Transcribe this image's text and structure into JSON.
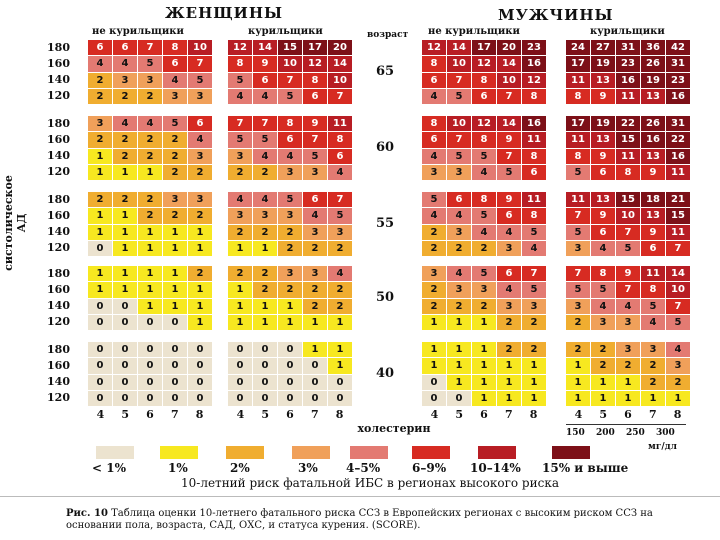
{
  "titles": {
    "women": "ЖЕНЩИНЫ",
    "men": "МУЖЧИНЫ"
  },
  "subheads": {
    "nonsmoker": "не курильщики",
    "smoker": "курильщики",
    "age": "возраст"
  },
  "ylabel": "систолическое АД",
  "sbp_rows": [
    "180",
    "160",
    "140",
    "120"
  ],
  "chol_ticks": [
    "4",
    "5",
    "6",
    "7",
    "8"
  ],
  "chol_label": "холестерин",
  "mgdl_ticks": [
    "150",
    "200",
    "250",
    "300"
  ],
  "mgdl_unit": "мг/дл",
  "ages": [
    "65",
    "60",
    "55",
    "50",
    "40"
  ],
  "chart_data": {
    "type": "heatmap",
    "x_label": "холестерин",
    "y_label": "систолическое АД",
    "x": [
      4,
      5,
      6,
      7,
      8
    ],
    "y": [
      180,
      160,
      140,
      120
    ],
    "panels": [
      {
        "age": "65",
        "women_nonsmoker": [
          [
            6,
            6,
            7,
            8,
            10
          ],
          [
            4,
            4,
            5,
            6,
            7
          ],
          [
            2,
            3,
            3,
            4,
            5
          ],
          [
            2,
            2,
            2,
            3,
            3
          ]
        ],
        "women_smoker": [
          [
            12,
            14,
            15,
            17,
            20
          ],
          [
            8,
            9,
            10,
            12,
            14
          ],
          [
            5,
            6,
            7,
            8,
            10
          ],
          [
            4,
            4,
            5,
            6,
            7
          ]
        ],
        "men_nonsmoker": [
          [
            12,
            14,
            17,
            20,
            23
          ],
          [
            8,
            10,
            12,
            14,
            16
          ],
          [
            6,
            7,
            8,
            10,
            12
          ],
          [
            4,
            5,
            6,
            7,
            8
          ]
        ],
        "men_smoker": [
          [
            24,
            27,
            31,
            36,
            42
          ],
          [
            17,
            19,
            23,
            26,
            31
          ],
          [
            11,
            13,
            16,
            19,
            23
          ],
          [
            8,
            9,
            11,
            13,
            16
          ]
        ]
      },
      {
        "age": "60",
        "women_nonsmoker": [
          [
            3,
            4,
            4,
            5,
            6
          ],
          [
            2,
            2,
            2,
            2,
            4
          ],
          [
            1,
            2,
            2,
            2,
            3
          ],
          [
            1,
            1,
            1,
            2,
            2
          ]
        ],
        "women_smoker": [
          [
            7,
            7,
            8,
            9,
            11
          ],
          [
            5,
            5,
            6,
            7,
            8
          ],
          [
            3,
            4,
            4,
            5,
            6
          ],
          [
            2,
            2,
            3,
            3,
            4
          ]
        ],
        "men_nonsmoker": [
          [
            8,
            10,
            12,
            14,
            16
          ],
          [
            6,
            7,
            8,
            9,
            11
          ],
          [
            4,
            5,
            5,
            7,
            8
          ],
          [
            3,
            3,
            4,
            5,
            6
          ]
        ],
        "men_smoker": [
          [
            17,
            19,
            22,
            26,
            31
          ],
          [
            11,
            13,
            15,
            16,
            22
          ],
          [
            8,
            9,
            11,
            13,
            16
          ],
          [
            5,
            6,
            8,
            9,
            11
          ]
        ]
      },
      {
        "age": "55",
        "women_nonsmoker": [
          [
            2,
            2,
            2,
            3,
            3
          ],
          [
            1,
            1,
            2,
            2,
            2
          ],
          [
            1,
            1,
            1,
            1,
            1
          ],
          [
            0,
            1,
            1,
            1,
            1
          ]
        ],
        "women_smoker": [
          [
            4,
            4,
            5,
            6,
            7
          ],
          [
            3,
            3,
            3,
            4,
            5
          ],
          [
            2,
            2,
            2,
            3,
            3
          ],
          [
            1,
            1,
            2,
            2,
            2
          ]
        ],
        "men_nonsmoker": [
          [
            5,
            6,
            8,
            9,
            11
          ],
          [
            4,
            4,
            5,
            6,
            8
          ],
          [
            2,
            3,
            4,
            4,
            5
          ],
          [
            2,
            2,
            2,
            3,
            4
          ]
        ],
        "men_smoker": [
          [
            11,
            13,
            15,
            18,
            21
          ],
          [
            7,
            9,
            10,
            13,
            15
          ],
          [
            5,
            6,
            7,
            9,
            11
          ],
          [
            3,
            4,
            5,
            6,
            7
          ]
        ]
      },
      {
        "age": "50",
        "women_nonsmoker": [
          [
            1,
            1,
            1,
            1,
            2
          ],
          [
            1,
            1,
            1,
            1,
            1
          ],
          [
            0,
            0,
            1,
            1,
            1
          ],
          [
            0,
            0,
            0,
            0,
            1
          ]
        ],
        "women_smoker": [
          [
            2,
            2,
            3,
            3,
            4
          ],
          [
            1,
            2,
            2,
            2,
            2
          ],
          [
            1,
            1,
            1,
            2,
            2
          ],
          [
            1,
            1,
            1,
            1,
            1
          ]
        ],
        "men_nonsmoker": [
          [
            3,
            4,
            5,
            6,
            7
          ],
          [
            2,
            3,
            3,
            4,
            5
          ],
          [
            2,
            2,
            2,
            3,
            3
          ],
          [
            1,
            1,
            1,
            2,
            2
          ]
        ],
        "men_smoker": [
          [
            7,
            8,
            9,
            11,
            14
          ],
          [
            5,
            5,
            7,
            8,
            10
          ],
          [
            3,
            4,
            4,
            5,
            7
          ],
          [
            2,
            3,
            3,
            4,
            5
          ]
        ]
      },
      {
        "age": "40",
        "women_nonsmoker": [
          [
            0,
            0,
            0,
            0,
            0
          ],
          [
            0,
            0,
            0,
            0,
            0
          ],
          [
            0,
            0,
            0,
            0,
            0
          ],
          [
            0,
            0,
            0,
            0,
            0
          ]
        ],
        "women_smoker": [
          [
            0,
            0,
            0,
            1,
            1
          ],
          [
            0,
            0,
            0,
            0,
            1
          ],
          [
            0,
            0,
            0,
            0,
            0
          ],
          [
            0,
            0,
            0,
            0,
            0
          ]
        ],
        "men_nonsmoker": [
          [
            1,
            1,
            1,
            2,
            2
          ],
          [
            1,
            1,
            1,
            1,
            1
          ],
          [
            0,
            1,
            1,
            1,
            1
          ],
          [
            0,
            0,
            1,
            1,
            1
          ]
        ],
        "men_smoker": [
          [
            2,
            2,
            3,
            3,
            4
          ],
          [
            1,
            2,
            2,
            2,
            3
          ],
          [
            1,
            1,
            1,
            2,
            2
          ],
          [
            1,
            1,
            1,
            1,
            1
          ]
        ]
      }
    ]
  },
  "legend": {
    "items": [
      {
        "label": "< 1%",
        "color": "#ece3cf"
      },
      {
        "label": "1%",
        "color": "#f7e820"
      },
      {
        "label": "2%",
        "color": "#f0ad30"
      },
      {
        "label": "3%",
        "color": "#f0a05a"
      },
      {
        "label": "4–5%",
        "color": "#e37a72"
      },
      {
        "label": "6–9%",
        "color": "#d72b22"
      },
      {
        "label": "10–14%",
        "color": "#b81d24"
      },
      {
        "label": "15% и выше",
        "color": "#7d1018"
      }
    ],
    "caption": "10-летний риск фатальной ИБС в регионах высокого риска"
  },
  "figure_caption": {
    "label": "Рис. 10",
    "text": "Таблица оценки 10-летнего фатального риска ССЗ в Европейских регионах с высоким риском ССЗ на основании пола, возраста, САД, ОХС, и статуса курения. (SCORE)."
  }
}
